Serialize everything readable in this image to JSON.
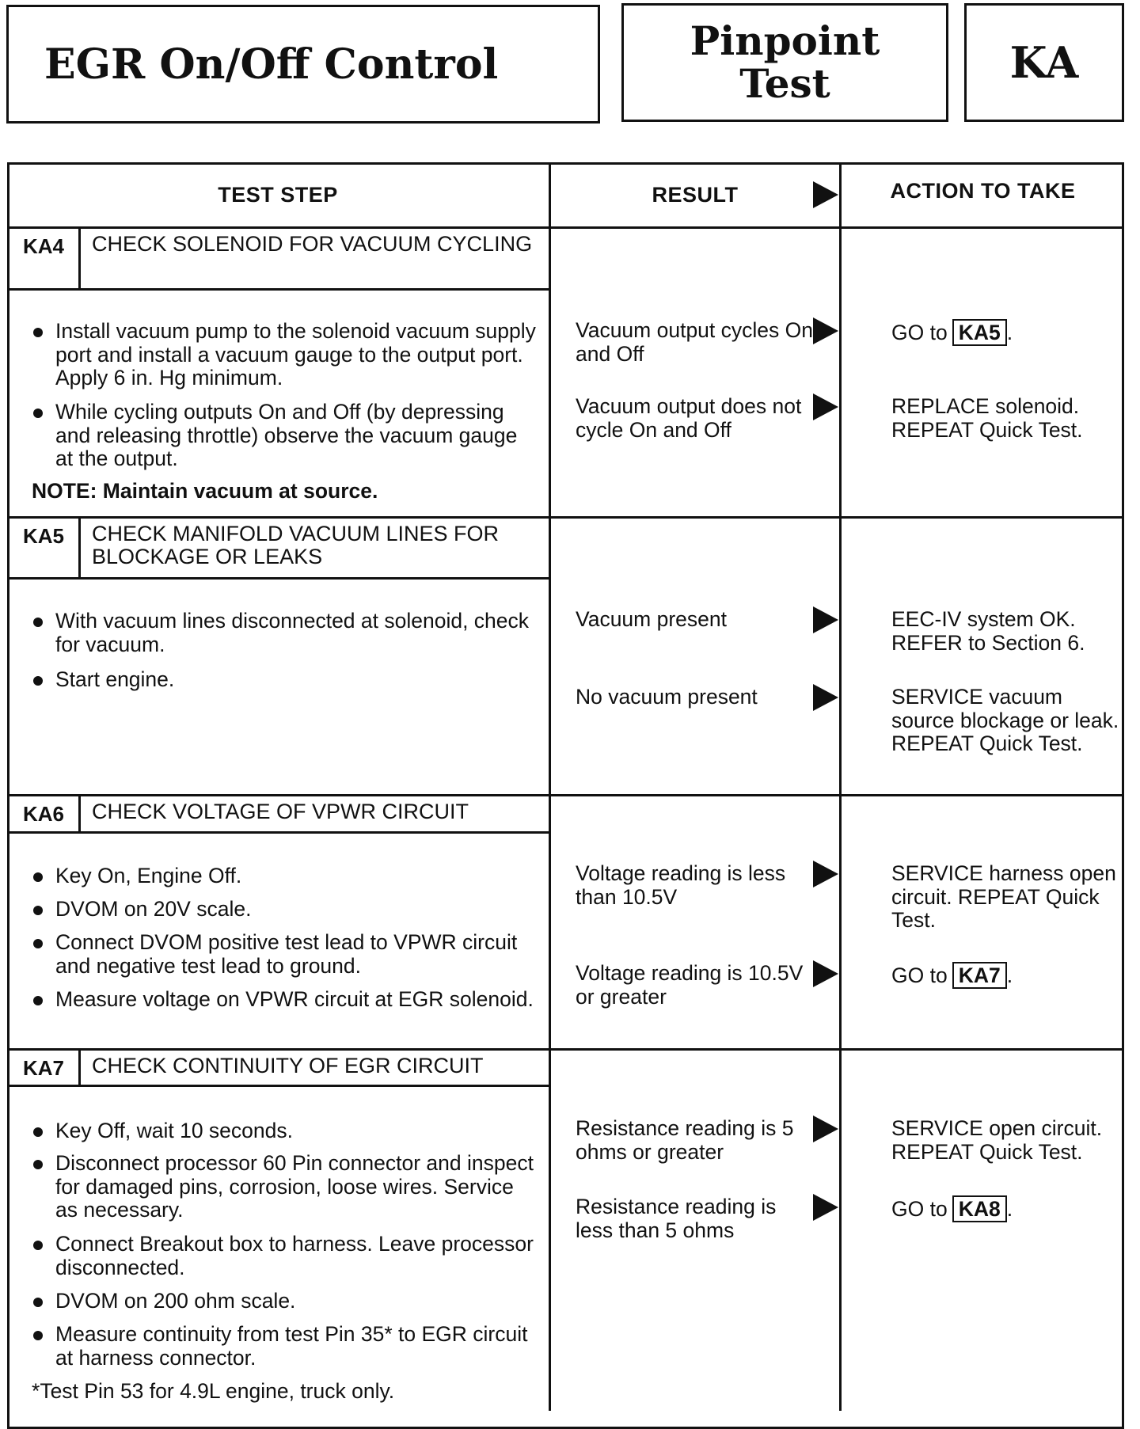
{
  "header": {
    "title": "EGR On/Off Control",
    "test_type_line1": "Pinpoint",
    "test_type_line2": "Test",
    "code": "KA"
  },
  "columns": {
    "test_step": "TEST STEP",
    "result": "RESULT",
    "action": "ACTION TO TAKE"
  },
  "steps": [
    {
      "id": "KA4",
      "title": "CHECK SOLENOID FOR VACUUM CYCLING",
      "bullets": [
        "Install vacuum pump to the solenoid vacuum supply port and install a vacuum gauge to the output port. Apply 6 in. Hg minimum.",
        "While cycling outputs On and Off (by depressing and releasing throttle) observe the vacuum gauge at the output."
      ],
      "note": "NOTE:  Maintain vacuum at source.",
      "outcomes": [
        {
          "result": "Vacuum output cycles On and Off",
          "action": "GO to",
          "ref": "KA5",
          "after": "."
        },
        {
          "result": "Vacuum output does not cycle On and Off",
          "action": "REPLACE solenoid. REPEAT Quick Test."
        }
      ]
    },
    {
      "id": "KA5",
      "title": "CHECK MANIFOLD VACUUM LINES FOR BLOCKAGE OR LEAKS",
      "bullets": [
        "With vacuum lines disconnected at solenoid, check for vacuum.",
        "Start engine."
      ],
      "outcomes": [
        {
          "result": "Vacuum present",
          "action": "EEC-IV system OK. REFER to Section 6."
        },
        {
          "result": "No vacuum present",
          "action": "SERVICE vacuum source blockage or leak. REPEAT Quick Test."
        }
      ]
    },
    {
      "id": "KA6",
      "title": "CHECK VOLTAGE OF VPWR CIRCUIT",
      "bullets": [
        "Key On, Engine Off.",
        "DVOM on 20V scale.",
        "Connect DVOM positive test lead to VPWR circuit and negative test lead to ground.",
        "Measure voltage on VPWR circuit at EGR solenoid."
      ],
      "outcomes": [
        {
          "result": "Voltage reading is less than 10.5V",
          "action": "SERVICE harness open circuit. REPEAT Quick Test."
        },
        {
          "result": "Voltage reading is 10.5V or greater",
          "action": "GO to",
          "ref": "KA7",
          "after": "."
        }
      ]
    },
    {
      "id": "KA7",
      "title": "CHECK CONTINUITY OF EGR CIRCUIT",
      "bullets": [
        "Key Off, wait 10 seconds.",
        "Disconnect processor 60 Pin connector and inspect for damaged pins, corrosion, loose wires. Service as necessary.",
        "Connect Breakout box to harness. Leave processor disconnected.",
        "DVOM on 200 ohm scale.",
        "Measure continuity from test Pin 35* to EGR circuit at harness connector."
      ],
      "note": "*Test Pin 53 for 4.9L engine, truck only.",
      "outcomes": [
        {
          "result": "Resistance reading is 5 ohms or greater",
          "action": "SERVICE open circuit. REPEAT Quick Test."
        },
        {
          "result": "Resistance reading is less than 5 ohms",
          "action": "GO to",
          "ref": "KA8",
          "after": "."
        }
      ]
    }
  ]
}
